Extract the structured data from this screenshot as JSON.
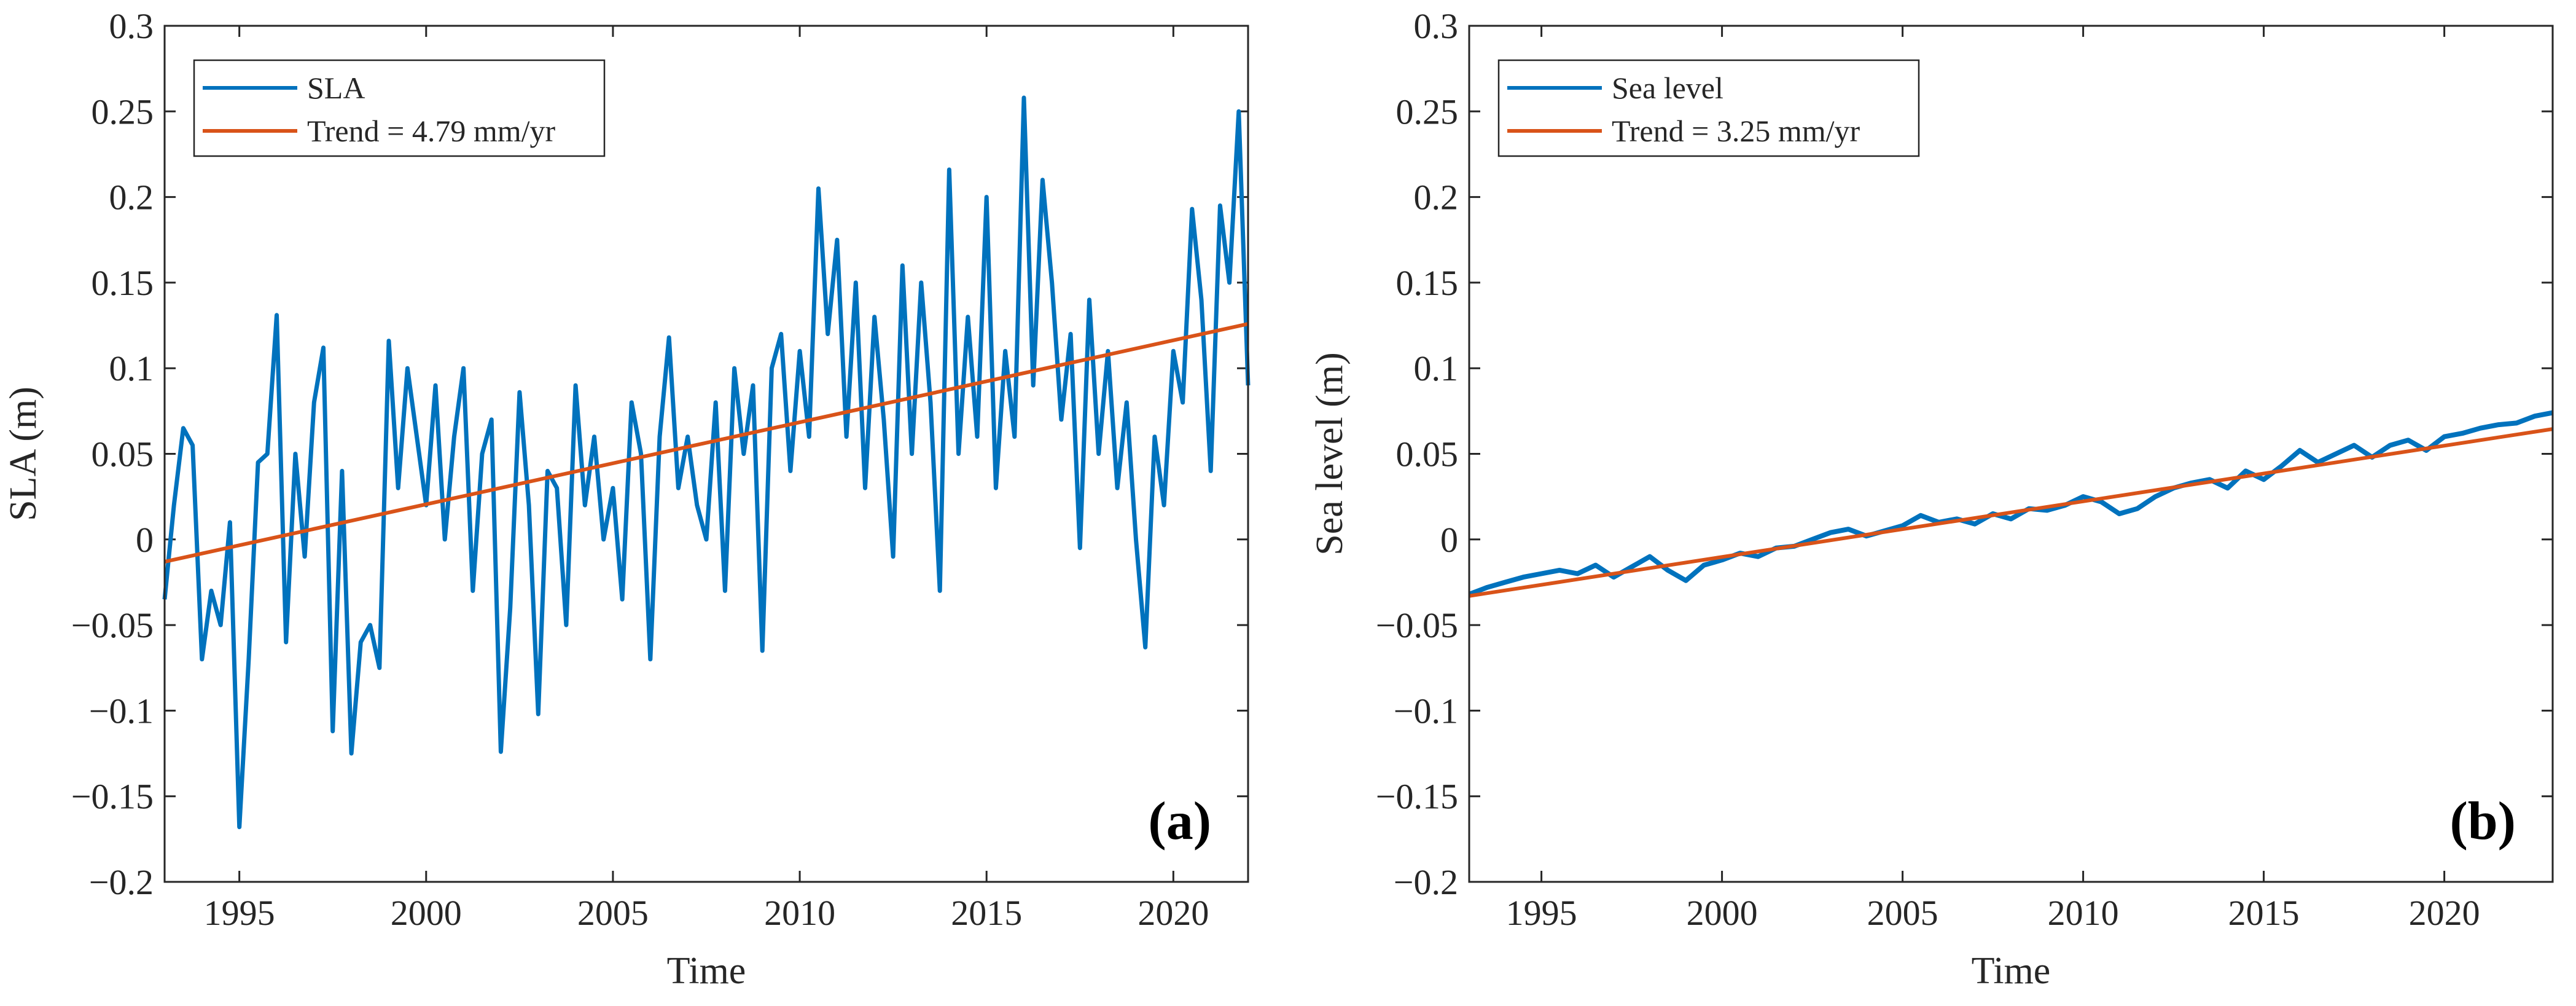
{
  "figure": {
    "panels": [
      {
        "panel_label": "(a)",
        "xlabel": "Time",
        "ylabel": "SLA (m)",
        "x_tick_labels": [
          "1995",
          "2000",
          "2005",
          "2010",
          "2015",
          "2020"
        ],
        "y_tick_labels": [
          "0.3",
          "0.25",
          "0.2",
          "0.15",
          "0.1",
          "0.05",
          "0",
          "−0.05",
          "−0.1",
          "−0.15",
          "−0.2"
        ],
        "legend": [
          "SLA",
          "Trend = 4.79 mm/yr"
        ]
      },
      {
        "panel_label": "(b)",
        "xlabel": "Time",
        "ylabel": "Sea level (m)",
        "x_tick_labels": [
          "1995",
          "2000",
          "2005",
          "2010",
          "2015",
          "2020"
        ],
        "y_tick_labels": [
          "0.3",
          "0.25",
          "0.2",
          "0.15",
          "0.1",
          "0.05",
          "0",
          "−0.05",
          "−0.1",
          "−0.15",
          "−0.2"
        ],
        "legend": [
          "Sea level",
          "Trend = 3.25 mm/yr"
        ]
      }
    ]
  },
  "chart_data": [
    {
      "type": "line",
      "title": "",
      "panel_label": "(a)",
      "xlabel": "Time",
      "ylabel": "SLA (m)",
      "xlim": [
        1993,
        2022
      ],
      "ylim": [
        -0.2,
        0.3
      ],
      "xticks": [
        1995,
        2000,
        2005,
        2010,
        2015,
        2020
      ],
      "yticks": [
        0.3,
        0.25,
        0.2,
        0.15,
        0.1,
        0.05,
        0,
        -0.05,
        -0.1,
        -0.15,
        -0.2
      ],
      "grid": false,
      "legend_position": "top-left",
      "colors": {
        "data": "#0072BD",
        "trend": "#D95319"
      },
      "x": [
        1993.0,
        1993.25,
        1993.5,
        1993.75,
        1994.0,
        1994.25,
        1994.5,
        1994.75,
        1995.0,
        1995.25,
        1995.5,
        1995.75,
        1996.0,
        1996.25,
        1996.5,
        1996.75,
        1997.0,
        1997.25,
        1997.5,
        1997.75,
        1998.0,
        1998.25,
        1998.5,
        1998.75,
        1999.0,
        1999.25,
        1999.5,
        1999.75,
        2000.0,
        2000.25,
        2000.5,
        2000.75,
        2001.0,
        2001.25,
        2001.5,
        2001.75,
        2002.0,
        2002.25,
        2002.5,
        2002.75,
        2003.0,
        2003.25,
        2003.5,
        2003.75,
        2004.0,
        2004.25,
        2004.5,
        2004.75,
        2005.0,
        2005.25,
        2005.5,
        2005.75,
        2006.0,
        2006.25,
        2006.5,
        2006.75,
        2007.0,
        2007.25,
        2007.5,
        2007.75,
        2008.0,
        2008.25,
        2008.5,
        2008.75,
        2009.0,
        2009.25,
        2009.5,
        2009.75,
        2010.0,
        2010.25,
        2010.5,
        2010.75,
        2011.0,
        2011.25,
        2011.5,
        2011.75,
        2012.0,
        2012.25,
        2012.5,
        2012.75,
        2013.0,
        2013.25,
        2013.5,
        2013.75,
        2014.0,
        2014.25,
        2014.5,
        2014.75,
        2015.0,
        2015.25,
        2015.5,
        2015.75,
        2016.0,
        2016.25,
        2016.5,
        2016.75,
        2017.0,
        2017.25,
        2017.5,
        2017.75,
        2018.0,
        2018.25,
        2018.5,
        2018.75,
        2019.0,
        2019.25,
        2019.5,
        2019.75,
        2020.0,
        2020.25,
        2020.5,
        2020.75,
        2021.0,
        2021.25,
        2021.5,
        2021.75,
        2022.0
      ],
      "series": [
        {
          "name": "SLA",
          "values": [
            -0.035,
            0.02,
            0.065,
            0.055,
            -0.07,
            -0.03,
            -0.05,
            0.01,
            -0.168,
            -0.07,
            0.045,
            0.05,
            0.131,
            -0.06,
            0.05,
            -0.01,
            0.08,
            0.112,
            -0.112,
            0.04,
            -0.125,
            -0.06,
            -0.05,
            -0.075,
            0.116,
            0.03,
            0.1,
            0.06,
            0.02,
            0.09,
            0.0,
            0.06,
            0.1,
            -0.03,
            0.05,
            0.07,
            -0.124,
            -0.04,
            0.086,
            0.02,
            -0.102,
            0.04,
            0.03,
            -0.05,
            0.09,
            0.02,
            0.06,
            0.0,
            0.03,
            -0.035,
            0.08,
            0.05,
            -0.07,
            0.06,
            0.118,
            0.03,
            0.06,
            0.02,
            0.0,
            0.08,
            -0.03,
            0.1,
            0.05,
            0.09,
            -0.065,
            0.1,
            0.12,
            0.04,
            0.11,
            0.06,
            0.205,
            0.12,
            0.175,
            0.06,
            0.15,
            0.03,
            0.13,
            0.07,
            -0.01,
            0.16,
            0.05,
            0.15,
            0.08,
            -0.03,
            0.216,
            0.05,
            0.13,
            0.06,
            0.2,
            0.03,
            0.11,
            0.06,
            0.258,
            0.09,
            0.21,
            0.15,
            0.07,
            0.12,
            -0.005,
            0.14,
            0.05,
            0.11,
            0.03,
            0.08,
            0.0,
            -0.063,
            0.06,
            0.02,
            0.11,
            0.08,
            0.193,
            0.14,
            0.04,
            0.195,
            0.15,
            0.25,
            0.09
          ]
        },
        {
          "name": "Trend = 4.79 mm/yr",
          "values": [
            -0.013,
            0.1259
          ],
          "x": [
            1993.0,
            2022.0
          ]
        }
      ]
    },
    {
      "type": "line",
      "title": "",
      "panel_label": "(b)",
      "xlabel": "Time",
      "ylabel": "Sea level (m)",
      "xlim": [
        1993,
        2023
      ],
      "ylim": [
        -0.2,
        0.3
      ],
      "xticks": [
        1995,
        2000,
        2005,
        2010,
        2015,
        2020
      ],
      "yticks": [
        0.3,
        0.25,
        0.2,
        0.15,
        0.1,
        0.05,
        0,
        -0.05,
        -0.1,
        -0.15,
        -0.2
      ],
      "grid": false,
      "legend_position": "top-left",
      "colors": {
        "data": "#0072BD",
        "trend": "#D95319"
      },
      "x": [
        1993.0,
        1993.5,
        1994.0,
        1994.5,
        1995.0,
        1995.5,
        1996.0,
        1996.5,
        1997.0,
        1997.5,
        1998.0,
        1998.5,
        1999.0,
        1999.5,
        2000.0,
        2000.5,
        2001.0,
        2001.5,
        2002.0,
        2002.5,
        2003.0,
        2003.5,
        2004.0,
        2004.5,
        2005.0,
        2005.5,
        2006.0,
        2006.5,
        2007.0,
        2007.5,
        2008.0,
        2008.5,
        2009.0,
        2009.5,
        2010.0,
        2010.5,
        2011.0,
        2011.5,
        2012.0,
        2012.5,
        2013.0,
        2013.5,
        2014.0,
        2014.5,
        2015.0,
        2015.5,
        2016.0,
        2016.5,
        2017.0,
        2017.5,
        2018.0,
        2018.5,
        2019.0,
        2019.5,
        2020.0,
        2020.5,
        2021.0,
        2021.5,
        2022.0,
        2022.5,
        2023.0
      ],
      "series": [
        {
          "name": "Sea level",
          "values": [
            -0.032,
            -0.028,
            -0.025,
            -0.022,
            -0.02,
            -0.018,
            -0.02,
            -0.015,
            -0.022,
            -0.016,
            -0.01,
            -0.018,
            -0.024,
            -0.015,
            -0.012,
            -0.008,
            -0.01,
            -0.005,
            -0.004,
            0.0,
            0.004,
            0.006,
            0.002,
            0.005,
            0.008,
            0.014,
            0.01,
            0.012,
            0.009,
            0.015,
            0.012,
            0.018,
            0.017,
            0.02,
            0.025,
            0.022,
            0.015,
            0.018,
            0.025,
            0.03,
            0.033,
            0.035,
            0.03,
            0.04,
            0.035,
            0.043,
            0.052,
            0.045,
            0.05,
            0.055,
            0.048,
            0.055,
            0.058,
            0.052,
            0.06,
            0.062,
            0.065,
            0.067,
            0.068,
            0.072,
            0.074
          ]
        },
        {
          "name": "Trend = 3.25 mm/yr",
          "values": [
            -0.033,
            0.0645
          ],
          "x": [
            1993.0,
            2023.0
          ]
        }
      ]
    }
  ]
}
